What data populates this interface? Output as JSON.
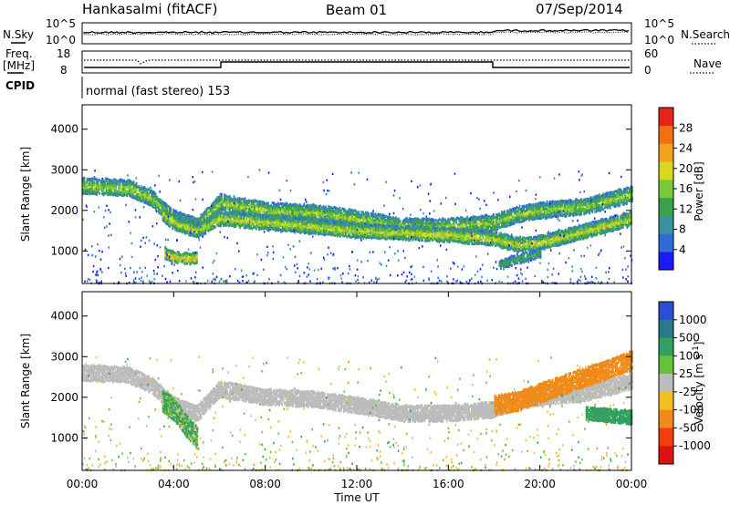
{
  "header": {
    "station": "Hankasalmi (fitACF)",
    "beam": "Beam 01",
    "date": "07/Sep/2014"
  },
  "noise_panel": {
    "left_label": "N.Sky",
    "right_label": "N.Search",
    "left_ticks": [
      "10^5",
      "10^0"
    ],
    "right_ticks": [
      "10^5",
      "10^0"
    ]
  },
  "freq_panel": {
    "left_label_line1": "Freq.",
    "left_label_line2": "[MHz]",
    "right_label": "Nave",
    "left_ticks": [
      "18",
      "8"
    ],
    "right_ticks": [
      "60",
      "0"
    ]
  },
  "cpid_panel": {
    "label": "CPID",
    "text": "normal (fast stereo) 153"
  },
  "chart_data": [
    {
      "type": "heatmap",
      "title": "",
      "ylabel": "Slant Range [km]",
      "ylim": [
        200,
        4600
      ],
      "yticks": [
        1000,
        2000,
        3000,
        4000
      ],
      "xlim": [
        0,
        24
      ],
      "colorbar": {
        "label": "Power [dB]",
        "ticks": [
          4,
          8,
          12,
          16,
          20,
          24,
          28
        ],
        "range": [
          0,
          32
        ],
        "colors": [
          "#1a1aff",
          "#2f6bd6",
          "#3b8fa0",
          "#3aa04a",
          "#79c83c",
          "#d8d820",
          "#f2a21b",
          "#f26f14",
          "#e8231c"
        ]
      },
      "bands": [
        {
          "t": [
            0,
            2,
            3,
            4,
            5,
            6,
            8,
            10,
            12,
            14,
            16,
            18,
            19,
            20,
            22,
            24
          ],
          "range_km": [
            2600,
            2550,
            2300,
            1800,
            1600,
            2200,
            2000,
            1950,
            1800,
            1600,
            1600,
            1700,
            1900,
            2000,
            2100,
            2400
          ],
          "width_km": 180,
          "power_db": 16
        },
        {
          "t": [
            3.5,
            4,
            5,
            6,
            8,
            10,
            12,
            14,
            16,
            18,
            19,
            20,
            21,
            22,
            23,
            24
          ],
          "range_km": [
            1900,
            1700,
            1500,
            1800,
            1700,
            1600,
            1500,
            1450,
            1400,
            1300,
            1150,
            1200,
            1350,
            1500,
            1650,
            1800
          ],
          "width_km": 160,
          "power_db": 18
        },
        {
          "t": [
            3.6,
            4,
            4.6,
            5
          ],
          "range_km": [
            950,
            850,
            800,
            850
          ],
          "width_km": 120,
          "power_db": 20
        },
        {
          "t": [
            18.2,
            19,
            20
          ],
          "range_km": [
            650,
            800,
            950
          ],
          "width_km": 100,
          "power_db": 12
        }
      ]
    },
    {
      "type": "heatmap",
      "title": "",
      "xlabel": "Time UT",
      "ylabel": "Slant Range [km]",
      "ylim": [
        200,
        4600
      ],
      "yticks": [
        1000,
        2000,
        3000,
        4000
      ],
      "xlim": [
        0,
        24
      ],
      "xticks": [
        "00:00",
        "04:00",
        "08:00",
        "12:00",
        "16:00",
        "20:00",
        "00:00"
      ],
      "colorbar": {
        "label": "Velocity [m s^-1]",
        "ticks": [
          1000,
          500,
          100,
          25,
          -25,
          -100,
          -500,
          -1000
        ],
        "colors": [
          "#2a4fd0",
          "#2b7a8a",
          "#34a060",
          "#66c23a",
          "#bcbcbc",
          "#f0c020",
          "#f08a18",
          "#f04010",
          "#e01010"
        ]
      },
      "ground_scatter_color": "#bcbcbc",
      "bands": [
        {
          "t": [
            0,
            2,
            3,
            4,
            5,
            6,
            8,
            10,
            12,
            14,
            16,
            18,
            19,
            20,
            22,
            24
          ],
          "range_km": [
            2600,
            2550,
            2300,
            1800,
            1600,
            2200,
            2000,
            1950,
            1800,
            1600,
            1600,
            1700,
            1900,
            2000,
            2100,
            2400
          ],
          "width_km": 180,
          "velocity": 0
        },
        {
          "t": [
            18,
            19,
            20,
            21,
            22,
            23,
            24
          ],
          "range_km": [
            1800,
            1900,
            2100,
            2300,
            2500,
            2700,
            2900
          ],
          "width_km": 220,
          "velocity": -300
        },
        {
          "t": [
            3.5,
            4,
            4.5,
            5
          ],
          "range_km": [
            1900,
            1700,
            1300,
            1000
          ],
          "width_km": 250,
          "velocity": 150
        },
        {
          "t": [
            22,
            23,
            24
          ],
          "range_km": [
            1600,
            1550,
            1500
          ],
          "width_km": 150,
          "velocity": 300
        }
      ]
    }
  ]
}
